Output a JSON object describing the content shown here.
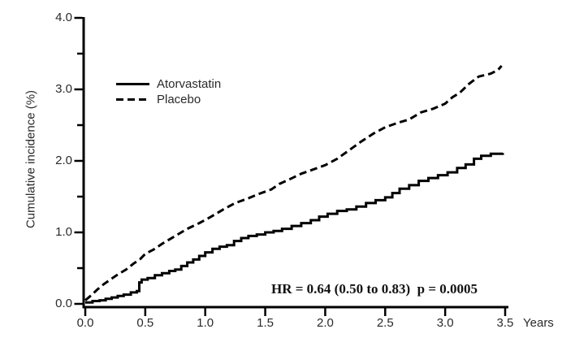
{
  "chart_data": {
    "type": "line",
    "title": "",
    "xlabel": "Years",
    "ylabel": "Cumulative incidence (%)",
    "xlim": [
      0,
      3.5
    ],
    "ylim": [
      0,
      4.0
    ],
    "grid": false,
    "legend_position": "upper-left-inside",
    "annotation": "HR = 0.64 (0.50 to 0.83)  p = 0.0005",
    "line_color": "#000000",
    "x_ticks": [
      0.0,
      0.5,
      1.0,
      1.5,
      2.0,
      2.5,
      3.0,
      3.5
    ],
    "x_tick_labels": [
      "0.0",
      "0.5",
      "1.0",
      "1.5",
      "2.0",
      "2.5",
      "3.0",
      "3.5"
    ],
    "y_ticks": [
      0.0,
      1.0,
      2.0,
      3.0,
      4.0
    ],
    "y_tick_labels": [
      "0.0",
      "1.0",
      "2.0",
      "3.0",
      "4.0"
    ],
    "y_minor_ticks": [
      0.5,
      1.5,
      2.5,
      3.5
    ],
    "series": [
      {
        "name": "Atorvastatin",
        "line_style": "solid",
        "interpolation": "step",
        "color": "#000000",
        "points": [
          [
            0.0,
            0.02
          ],
          [
            0.06,
            0.04
          ],
          [
            0.12,
            0.05
          ],
          [
            0.17,
            0.07
          ],
          [
            0.22,
            0.09
          ],
          [
            0.27,
            0.11
          ],
          [
            0.32,
            0.13
          ],
          [
            0.38,
            0.16
          ],
          [
            0.43,
            0.18
          ],
          [
            0.45,
            0.3
          ],
          [
            0.47,
            0.34
          ],
          [
            0.52,
            0.36
          ],
          [
            0.58,
            0.4
          ],
          [
            0.64,
            0.43
          ],
          [
            0.7,
            0.46
          ],
          [
            0.75,
            0.48
          ],
          [
            0.8,
            0.53
          ],
          [
            0.85,
            0.58
          ],
          [
            0.9,
            0.62
          ],
          [
            0.95,
            0.67
          ],
          [
            1.0,
            0.72
          ],
          [
            1.06,
            0.77
          ],
          [
            1.12,
            0.8
          ],
          [
            1.18,
            0.82
          ],
          [
            1.24,
            0.88
          ],
          [
            1.3,
            0.92
          ],
          [
            1.36,
            0.95
          ],
          [
            1.43,
            0.97
          ],
          [
            1.5,
            1.0
          ],
          [
            1.57,
            1.02
          ],
          [
            1.64,
            1.05
          ],
          [
            1.72,
            1.09
          ],
          [
            1.8,
            1.13
          ],
          [
            1.88,
            1.17
          ],
          [
            1.95,
            1.22
          ],
          [
            2.02,
            1.26
          ],
          [
            2.1,
            1.3
          ],
          [
            2.18,
            1.32
          ],
          [
            2.26,
            1.36
          ],
          [
            2.34,
            1.41
          ],
          [
            2.42,
            1.45
          ],
          [
            2.5,
            1.49
          ],
          [
            2.56,
            1.55
          ],
          [
            2.62,
            1.61
          ],
          [
            2.7,
            1.66
          ],
          [
            2.78,
            1.72
          ],
          [
            2.86,
            1.76
          ],
          [
            2.94,
            1.8
          ],
          [
            3.02,
            1.84
          ],
          [
            3.1,
            1.9
          ],
          [
            3.17,
            1.95
          ],
          [
            3.24,
            2.03
          ],
          [
            3.3,
            2.07
          ],
          [
            3.38,
            2.1
          ],
          [
            3.48,
            2.11
          ]
        ]
      },
      {
        "name": "Placebo",
        "line_style": "dashed",
        "interpolation": "linear",
        "color": "#000000",
        "points": [
          [
            0.0,
            0.05
          ],
          [
            0.05,
            0.12
          ],
          [
            0.1,
            0.2
          ],
          [
            0.15,
            0.27
          ],
          [
            0.2,
            0.33
          ],
          [
            0.27,
            0.41
          ],
          [
            0.34,
            0.48
          ],
          [
            0.4,
            0.56
          ],
          [
            0.46,
            0.63
          ],
          [
            0.5,
            0.7
          ],
          [
            0.57,
            0.76
          ],
          [
            0.64,
            0.84
          ],
          [
            0.7,
            0.9
          ],
          [
            0.76,
            0.96
          ],
          [
            0.85,
            1.05
          ],
          [
            0.95,
            1.13
          ],
          [
            1.05,
            1.22
          ],
          [
            1.15,
            1.32
          ],
          [
            1.25,
            1.41
          ],
          [
            1.35,
            1.47
          ],
          [
            1.45,
            1.54
          ],
          [
            1.55,
            1.6
          ],
          [
            1.62,
            1.68
          ],
          [
            1.7,
            1.74
          ],
          [
            1.8,
            1.82
          ],
          [
            1.9,
            1.88
          ],
          [
            2.0,
            1.94
          ],
          [
            2.1,
            2.03
          ],
          [
            2.2,
            2.15
          ],
          [
            2.3,
            2.27
          ],
          [
            2.4,
            2.38
          ],
          [
            2.5,
            2.47
          ],
          [
            2.6,
            2.53
          ],
          [
            2.7,
            2.58
          ],
          [
            2.8,
            2.68
          ],
          [
            2.9,
            2.73
          ],
          [
            3.0,
            2.8
          ],
          [
            3.06,
            2.89
          ],
          [
            3.12,
            2.95
          ],
          [
            3.2,
            3.08
          ],
          [
            3.28,
            3.18
          ],
          [
            3.38,
            3.22
          ],
          [
            3.44,
            3.27
          ],
          [
            3.47,
            3.33
          ]
        ]
      }
    ]
  }
}
